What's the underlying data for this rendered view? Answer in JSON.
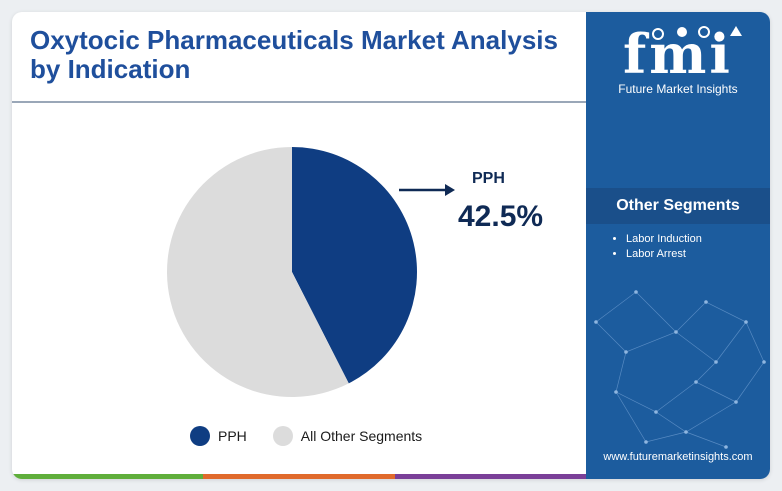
{
  "title": "Oxytocic Pharmaceuticals Market Analysis by Indication",
  "chart_data": {
    "type": "pie",
    "slices": [
      {
        "label": "PPH",
        "value": 42.5,
        "color": "#0f3d82"
      },
      {
        "label": "All Other Segments",
        "value": 57.5,
        "color": "#dcdcdc"
      }
    ],
    "callout": {
      "label": "PPH",
      "value_text": "42.5%"
    },
    "legend": [
      "PPH",
      "All Other Segments"
    ],
    "legend_position": "bottom"
  },
  "brand": {
    "logo_text": "fmi",
    "name": "Future Market Insights",
    "url": "www.futuremarketinsights.com"
  },
  "sidebar": {
    "heading": "Other Segments",
    "items": [
      "Labor Induction",
      "Labor Arrest"
    ]
  },
  "colors": {
    "title": "#1f4f9c",
    "pph": "#0f3d82",
    "other": "#dcdcdc",
    "sidebar_bg": "#1c5c9e",
    "bottom_bar": [
      "#5fae3b",
      "#e06a2c",
      "#7a3f98"
    ]
  }
}
